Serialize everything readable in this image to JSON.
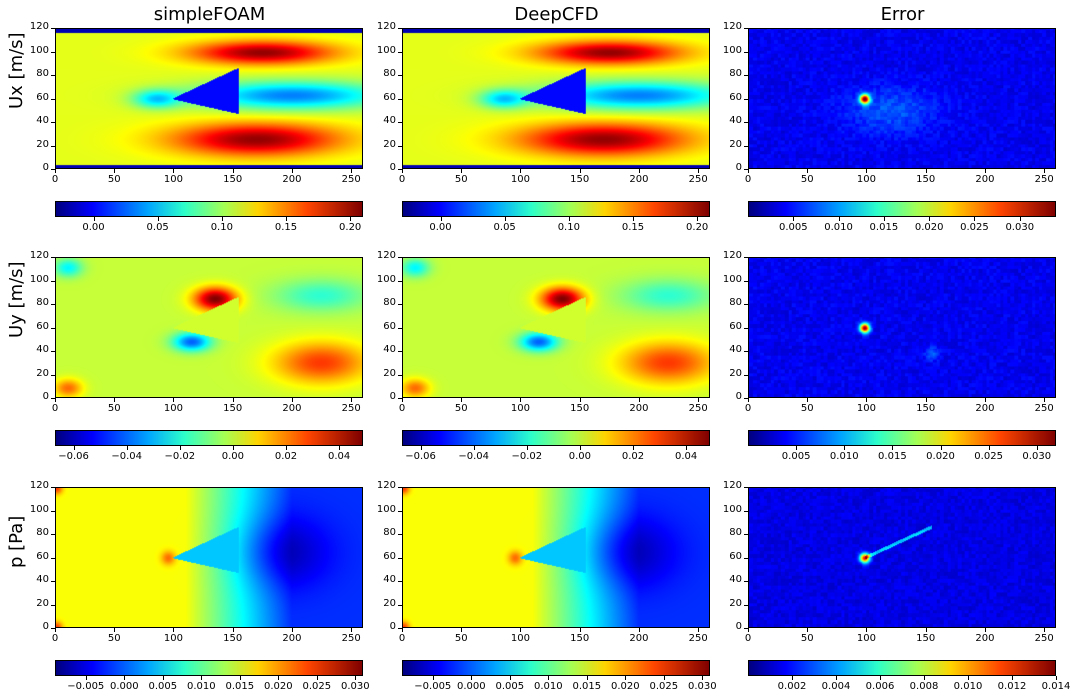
{
  "chart_data": {
    "type": "heatmap",
    "columns": [
      "simpleFOAM",
      "DeepCFD",
      "Error"
    ],
    "rows": [
      {
        "label": "Ux [m/s]",
        "fields": [
          "Ux",
          "Ux",
          "Ux-error"
        ],
        "colorbar_ticks": [
          [
            "0.00",
            "0.05",
            "0.10",
            "0.15",
            "0.20"
          ],
          [
            "0.00",
            "0.05",
            "0.10",
            "0.15",
            "0.20"
          ],
          [
            "0.005",
            "0.010",
            "0.015",
            "0.020",
            "0.025",
            "0.030"
          ]
        ],
        "colorbar_ranges": [
          [
            -0.03,
            0.21
          ],
          [
            -0.03,
            0.21
          ],
          [
            0.0,
            0.034
          ]
        ]
      },
      {
        "label": "Uy [m/s]",
        "fields": [
          "Uy",
          "Uy",
          "Uy-error"
        ],
        "colorbar_ticks": [
          [
            "−0.06",
            "−0.04",
            "−0.02",
            "0.00",
            "0.02",
            "0.04"
          ],
          [
            "−0.06",
            "−0.04",
            "−0.02",
            "0.00",
            "0.02",
            "0.04"
          ],
          [
            "0.005",
            "0.010",
            "0.015",
            "0.020",
            "0.025",
            "0.030"
          ]
        ],
        "colorbar_ranges": [
          [
            -0.067,
            0.049
          ],
          [
            -0.067,
            0.049
          ],
          [
            0.0,
            0.032
          ]
        ]
      },
      {
        "label": "p [Pa]",
        "fields": [
          "p",
          "p",
          "p-error"
        ],
        "colorbar_ticks": [
          [
            "−0.005",
            "0.000",
            "0.005",
            "0.010",
            "0.015",
            "0.020",
            "0.025",
            "0.030"
          ],
          [
            "−0.005",
            "0.000",
            "0.005",
            "0.010",
            "0.015",
            "0.020",
            "0.025",
            "0.030"
          ],
          [
            "0.002",
            "0.004",
            "0.006",
            "0.008",
            "0.010",
            "0.012",
            "0.014"
          ]
        ],
        "colorbar_ranges": [
          [
            -0.009,
            0.031
          ],
          [
            -0.009,
            0.031
          ],
          [
            0.0,
            0.014
          ]
        ]
      }
    ],
    "x_ticks": [
      0,
      50,
      100,
      150,
      200,
      250
    ],
    "y_ticks": [
      0,
      20,
      40,
      60,
      80,
      100,
      120
    ],
    "xlim": [
      0,
      260
    ],
    "ylim": [
      0,
      120
    ],
    "colormap": "jet"
  }
}
